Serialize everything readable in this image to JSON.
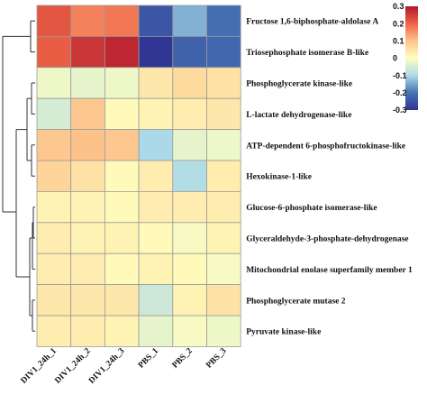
{
  "chart_data": {
    "type": "heatmap",
    "rows": [
      "Fructose 1,6-biphosphate-aldolase A",
      "Triosephosphate isomerase B-like",
      "Phosphoglycerate kinase-like",
      "L-lactate dehydrogenase-like",
      "ATP-dependent 6-phosphofructokinase-like",
      "Hexokinase-1-like",
      "Glucose-6-phosphate isomerase-like",
      "Glyceraldehyde-3-phosphate-dehydrogenase",
      "Mitochondrial enolase superfamily member 1",
      "Phosphoglycerate mutase 2",
      "Pyruvate kinase-like"
    ],
    "columns": [
      "DIV1_24h_1",
      "DIV1_24h_2",
      "DIV1_24h_3",
      "PBS_1",
      "PBS_2",
      "PBS_3"
    ],
    "values": [
      [
        0.22,
        0.17,
        0.18,
        -0.25,
        -0.14,
        -0.21
      ],
      [
        0.21,
        0.26,
        0.28,
        -0.31,
        -0.23,
        -0.22
      ],
      [
        -0.02,
        -0.03,
        -0.02,
        0.04,
        0.06,
        0.05
      ],
      [
        -0.05,
        0.09,
        0.01,
        0.02,
        0.03,
        0.04
      ],
      [
        0.09,
        0.1,
        0.09,
        -0.1,
        -0.03,
        -0.02
      ],
      [
        0.07,
        0.05,
        0.01,
        0.03,
        -0.09,
        0.03
      ],
      [
        0.02,
        0.02,
        0.01,
        0.03,
        0.03,
        0.03
      ],
      [
        0.03,
        0.02,
        0.02,
        0.01,
        -0.01,
        0.02
      ],
      [
        0.03,
        0.03,
        0.01,
        0.02,
        0.01,
        -0.01
      ],
      [
        0.04,
        0.04,
        0.04,
        -0.06,
        0.02,
        0.05
      ],
      [
        0.03,
        0.03,
        0.02,
        -0.03,
        -0.01,
        -0.02
      ]
    ],
    "colorbar": {
      "min": -0.3,
      "max": 0.3,
      "ticks": [
        0.3,
        0.2,
        0.1,
        0,
        -0.1,
        -0.2,
        -0.3
      ],
      "tick_labels": [
        "0.3",
        "0.2",
        "0.1",
        "0",
        "-0.1",
        "-0.2",
        "-0.3"
      ]
    },
    "colors": {
      "low": "#313695",
      "mid": "#ffffbf",
      "high": "#d7191c"
    },
    "row_dendrogram": true,
    "grid": true,
    "legend_placement": "top-right"
  }
}
